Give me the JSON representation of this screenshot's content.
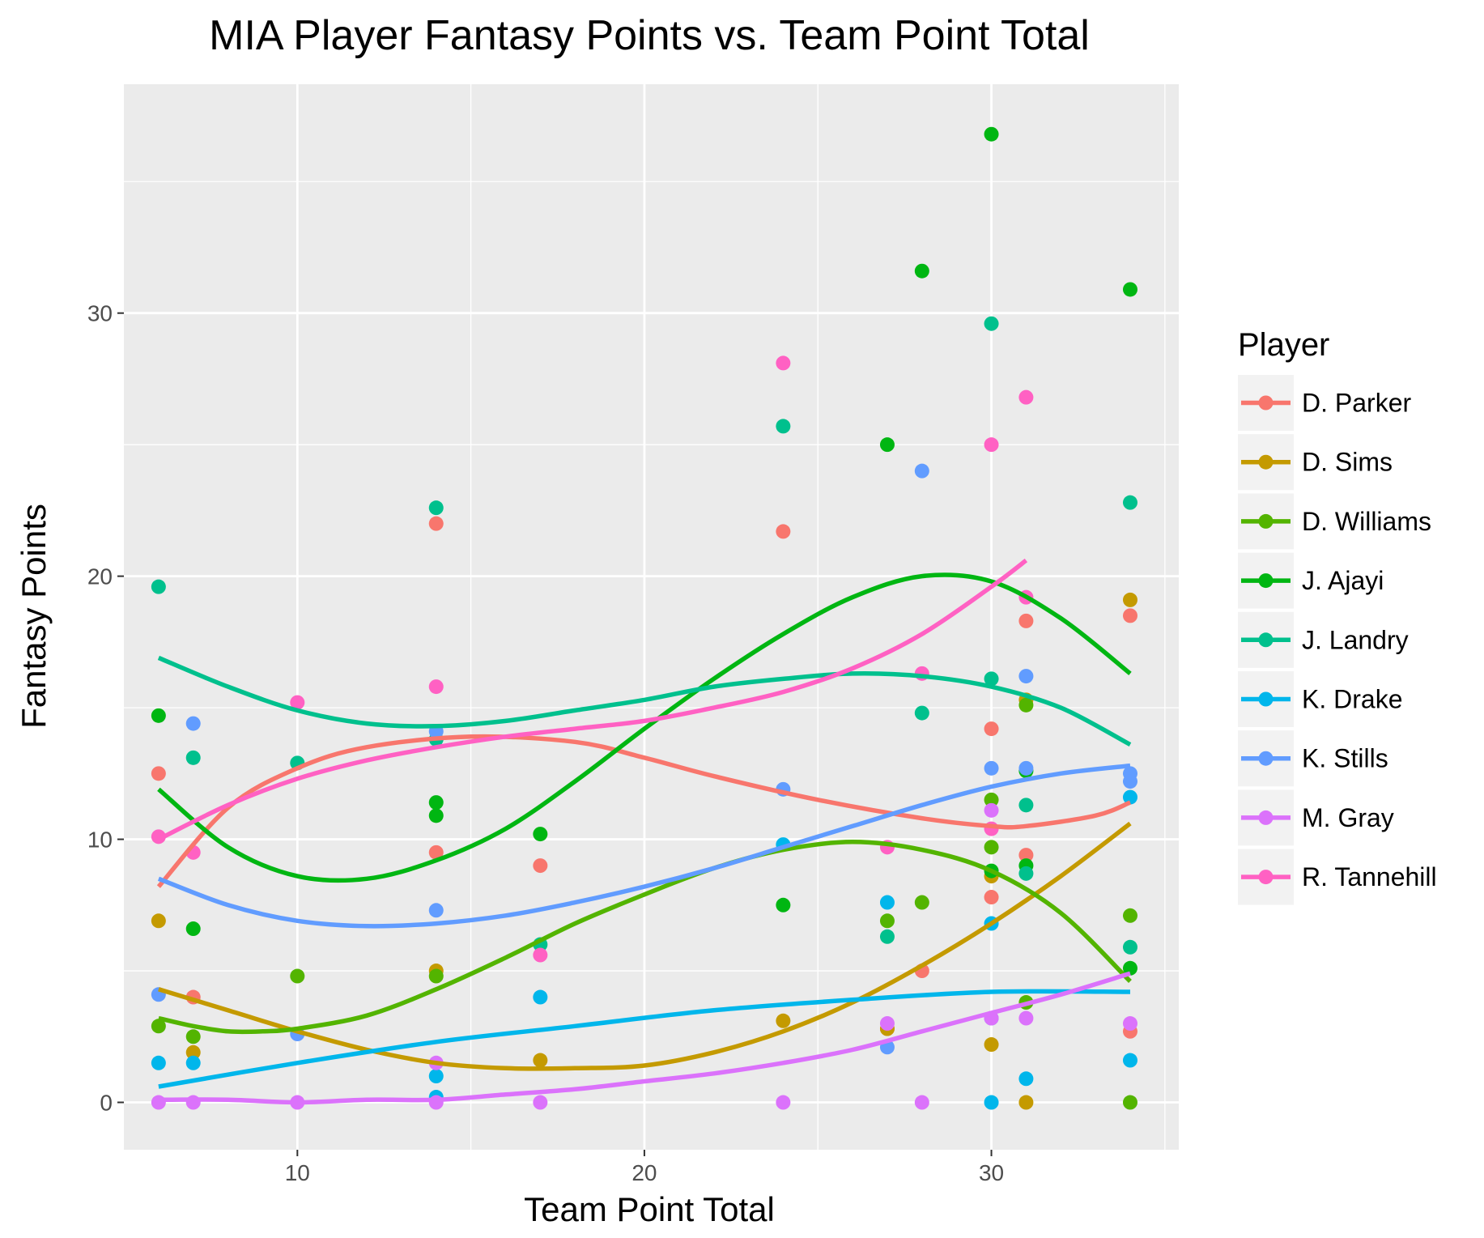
{
  "chart_data": {
    "type": "scatter",
    "title": "MIA Player Fantasy Points vs. Team Point Total",
    "xlabel": "Team Point Total",
    "ylabel": "Fantasy Points",
    "xlim": [
      5,
      35.4
    ],
    "ylim": [
      -1.8,
      38.7
    ],
    "x_ticks": [
      10,
      20,
      30
    ],
    "y_ticks": [
      0,
      10,
      20,
      30
    ],
    "x_tick_labels": [
      "10",
      "20",
      "30"
    ],
    "y_tick_labels": [
      "0",
      "10",
      "20",
      "30"
    ],
    "grid": true,
    "legend": {
      "title": "Player",
      "position": "right"
    },
    "series": [
      {
        "name": "D. Parker",
        "color": "#F8766D",
        "x": [
          6,
          7,
          14,
          14,
          17,
          24,
          27,
          28,
          30,
          30,
          31,
          31,
          34,
          34
        ],
        "y": [
          12.5,
          4.0,
          22.0,
          9.5,
          9.0,
          21.7,
          2.8,
          5.0,
          14.2,
          7.8,
          18.3,
          9.4,
          18.5,
          2.7
        ],
        "trend": [
          [
            6,
            8.2
          ],
          [
            8,
            11.2
          ],
          [
            10,
            12.7
          ],
          [
            12,
            13.5
          ],
          [
            15,
            13.9
          ],
          [
            18,
            13.7
          ],
          [
            20,
            13.1
          ],
          [
            22,
            12.4
          ],
          [
            25,
            11.5
          ],
          [
            28,
            10.8
          ],
          [
            30,
            10.5
          ],
          [
            31,
            10.5
          ],
          [
            33,
            10.9
          ],
          [
            34,
            11.4
          ]
        ]
      },
      {
        "name": "D. Sims",
        "color": "#C49A00",
        "x": [
          6,
          7,
          14,
          17,
          24,
          27,
          30,
          30,
          31,
          31,
          34
        ],
        "y": [
          6.9,
          1.9,
          5.0,
          1.6,
          3.1,
          2.8,
          8.6,
          2.2,
          0.0,
          15.3,
          19.1
        ],
        "trend": [
          [
            6,
            4.3
          ],
          [
            8,
            3.5
          ],
          [
            10,
            2.7
          ],
          [
            12,
            2.0
          ],
          [
            14,
            1.5
          ],
          [
            16,
            1.3
          ],
          [
            18,
            1.3
          ],
          [
            20,
            1.4
          ],
          [
            22,
            1.9
          ],
          [
            24,
            2.7
          ],
          [
            26,
            3.8
          ],
          [
            28,
            5.2
          ],
          [
            30,
            6.8
          ],
          [
            32,
            8.6
          ],
          [
            34,
            10.6
          ]
        ]
      },
      {
        "name": "D. Williams",
        "color": "#53B400",
        "x": [
          6,
          7,
          10,
          14,
          27,
          28,
          30,
          30,
          31,
          31,
          34,
          34
        ],
        "y": [
          2.9,
          2.5,
          4.8,
          4.8,
          6.9,
          7.6,
          11.5,
          9.7,
          3.8,
          15.1,
          7.1,
          0.0
        ],
        "trend": [
          [
            6,
            3.2
          ],
          [
            7,
            2.9
          ],
          [
            8,
            2.7
          ],
          [
            9,
            2.7
          ],
          [
            10,
            2.8
          ],
          [
            12,
            3.3
          ],
          [
            14,
            4.3
          ],
          [
            16,
            5.5
          ],
          [
            18,
            6.8
          ],
          [
            20,
            7.9
          ],
          [
            22,
            8.9
          ],
          [
            24,
            9.6
          ],
          [
            26,
            9.9
          ],
          [
            28,
            9.6
          ],
          [
            30,
            8.8
          ],
          [
            32,
            7.2
          ],
          [
            34,
            4.6
          ]
        ]
      },
      {
        "name": "J. Ajayi",
        "color": "#00B612",
        "x": [
          6,
          7,
          14,
          14,
          17,
          24,
          27,
          28,
          30,
          30,
          31,
          31,
          34,
          34
        ],
        "y": [
          14.7,
          6.6,
          11.4,
          10.9,
          10.2,
          7.5,
          25.0,
          31.6,
          36.8,
          8.8,
          9.0,
          12.6,
          30.9,
          5.1
        ],
        "trend": [
          [
            6,
            11.9
          ],
          [
            8,
            9.7
          ],
          [
            10,
            8.6
          ],
          [
            12,
            8.5
          ],
          [
            14,
            9.2
          ],
          [
            16,
            10.4
          ],
          [
            18,
            12.2
          ],
          [
            20,
            14.2
          ],
          [
            22,
            16.1
          ],
          [
            24,
            17.8
          ],
          [
            26,
            19.2
          ],
          [
            28,
            20.0
          ],
          [
            30,
            19.8
          ],
          [
            32,
            18.4
          ],
          [
            34,
            16.3
          ]
        ]
      },
      {
        "name": "J. Landry",
        "color": "#00C08D",
        "x": [
          6,
          7,
          10,
          14,
          14,
          17,
          24,
          27,
          28,
          30,
          30,
          31,
          31,
          34,
          34
        ],
        "y": [
          19.6,
          13.1,
          12.9,
          22.6,
          13.8,
          6.0,
          25.7,
          6.3,
          14.8,
          29.6,
          16.1,
          11.3,
          8.7,
          22.8,
          5.9
        ],
        "trend": [
          [
            6,
            16.9
          ],
          [
            8,
            15.8
          ],
          [
            10,
            14.9
          ],
          [
            12,
            14.4
          ],
          [
            14,
            14.3
          ],
          [
            16,
            14.5
          ],
          [
            18,
            14.9
          ],
          [
            20,
            15.3
          ],
          [
            22,
            15.8
          ],
          [
            24,
            16.1
          ],
          [
            26,
            16.3
          ],
          [
            28,
            16.2
          ],
          [
            30,
            15.8
          ],
          [
            32,
            15.0
          ],
          [
            34,
            13.6
          ]
        ]
      },
      {
        "name": "K. Drake",
        "color": "#00B6EB",
        "x": [
          6,
          7,
          14,
          14,
          17,
          24,
          27,
          30,
          30,
          31,
          34,
          34
        ],
        "y": [
          1.5,
          1.5,
          1.0,
          0.2,
          4.0,
          9.8,
          7.6,
          6.8,
          0.0,
          0.9,
          11.6,
          1.6
        ],
        "trend": [
          [
            6,
            0.6
          ],
          [
            10,
            1.5
          ],
          [
            14,
            2.3
          ],
          [
            18,
            2.9
          ],
          [
            22,
            3.5
          ],
          [
            26,
            3.9
          ],
          [
            30,
            4.2
          ],
          [
            34,
            4.2
          ]
        ]
      },
      {
        "name": "K. Stills",
        "color": "#619CFF",
        "x": [
          6,
          7,
          10,
          14,
          14,
          24,
          27,
          28,
          30,
          30,
          31,
          31,
          34,
          34
        ],
        "y": [
          4.1,
          14.4,
          2.6,
          7.3,
          14.1,
          11.9,
          2.1,
          24.0,
          12.7,
          3.2,
          16.2,
          12.7,
          12.5,
          12.2
        ],
        "trend": [
          [
            6,
            8.5
          ],
          [
            8,
            7.5
          ],
          [
            10,
            6.9
          ],
          [
            12,
            6.7
          ],
          [
            14,
            6.8
          ],
          [
            16,
            7.1
          ],
          [
            18,
            7.6
          ],
          [
            20,
            8.2
          ],
          [
            22,
            8.9
          ],
          [
            24,
            9.7
          ],
          [
            26,
            10.5
          ],
          [
            28,
            11.3
          ],
          [
            30,
            12.0
          ],
          [
            32,
            12.5
          ],
          [
            34,
            12.8
          ]
        ]
      },
      {
        "name": "M. Gray",
        "color": "#DB72FB",
        "x": [
          6,
          7,
          10,
          14,
          14,
          17,
          24,
          27,
          28,
          30,
          30,
          31,
          34
        ],
        "y": [
          0.0,
          0.0,
          0.0,
          1.5,
          0.0,
          0.0,
          0.0,
          3.0,
          0.0,
          11.1,
          3.2,
          3.2,
          3.0
        ],
        "trend": [
          [
            6,
            0.1
          ],
          [
            8,
            0.1
          ],
          [
            10,
            0.0
          ],
          [
            12,
            0.1
          ],
          [
            14,
            0.1
          ],
          [
            16,
            0.3
          ],
          [
            18,
            0.5
          ],
          [
            20,
            0.8
          ],
          [
            22,
            1.1
          ],
          [
            24,
            1.5
          ],
          [
            26,
            2.0
          ],
          [
            28,
            2.7
          ],
          [
            30,
            3.4
          ],
          [
            32,
            4.1
          ],
          [
            34,
            4.9
          ]
        ]
      },
      {
        "name": "R. Tannehill",
        "color": "#FF61C3",
        "x": [
          6,
          7,
          10,
          14,
          17,
          24,
          27,
          28,
          30,
          30,
          31,
          31
        ],
        "y": [
          10.1,
          9.5,
          15.2,
          15.8,
          5.6,
          28.1,
          9.7,
          16.3,
          25.0,
          10.4,
          26.8,
          19.2
        ],
        "trend": [
          [
            6,
            10.0
          ],
          [
            8,
            11.3
          ],
          [
            10,
            12.3
          ],
          [
            12,
            13.0
          ],
          [
            14,
            13.5
          ],
          [
            16,
            13.9
          ],
          [
            18,
            14.2
          ],
          [
            20,
            14.5
          ],
          [
            22,
            15.0
          ],
          [
            24,
            15.6
          ],
          [
            26,
            16.5
          ],
          [
            28,
            17.8
          ],
          [
            30,
            19.6
          ],
          [
            31,
            20.6
          ]
        ]
      }
    ]
  }
}
